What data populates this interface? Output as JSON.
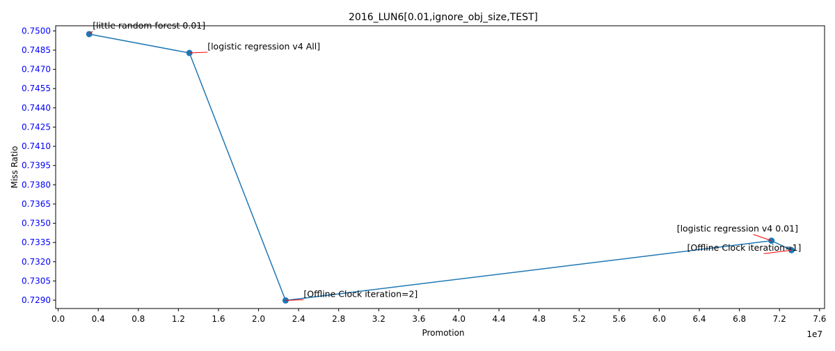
{
  "chart_data": {
    "type": "line",
    "title": "2016_LUN6[0.01,ignore_obj_size,TEST]",
    "xlabel": "Promotion",
    "ylabel": "Miss Ratio",
    "x_offset_label": "1e7",
    "xlim": [
      -250000,
      76500000
    ],
    "ylim": [
      0.72835,
      0.7504
    ],
    "x_tick_values": [
      0,
      4000000,
      8000000,
      12000000,
      16000000,
      20000000,
      24000000,
      28000000,
      32000000,
      36000000,
      40000000,
      44000000,
      48000000,
      52000000,
      56000000,
      60000000,
      64000000,
      68000000,
      72000000,
      76000000
    ],
    "x_tick_labels": [
      "0.0",
      "0.4",
      "0.8",
      "1.2",
      "1.6",
      "2.0",
      "2.4",
      "2.8",
      "3.2",
      "3.6",
      "4.0",
      "4.4",
      "4.8",
      "5.2",
      "5.6",
      "6.0",
      "6.4",
      "6.8",
      "7.2",
      "7.6"
    ],
    "y_tick_values": [
      0.729,
      0.7305,
      0.732,
      0.7335,
      0.735,
      0.7365,
      0.738,
      0.7395,
      0.741,
      0.7425,
      0.744,
      0.7455,
      0.747,
      0.7485,
      0.75
    ],
    "y_tick_labels": [
      "0.7290",
      "0.7305",
      "0.7320",
      "0.7335",
      "0.7350",
      "0.7365",
      "0.7380",
      "0.7395",
      "0.7410",
      "0.7425",
      "0.7440",
      "0.7455",
      "0.7470",
      "0.7485",
      "0.7500"
    ],
    "grid": false,
    "series": [
      {
        "color": "#1f77b4",
        "marker": "circle",
        "points": [
          {
            "x": 3100000,
            "y": 0.74975,
            "label": "[little random forest 0.01]"
          },
          {
            "x": 13100000,
            "y": 0.74828,
            "label": "[logistic regression v4 All]"
          },
          {
            "x": 22700000,
            "y": 0.72898,
            "label": "[Offline Clock iteration=2]"
          },
          {
            "x": 71200000,
            "y": 0.73364,
            "label": "[logistic regression v4 0.01]"
          },
          {
            "x": 73200000,
            "y": 0.7329,
            "label": "[Offline Clock iteration=1]"
          }
        ]
      }
    ],
    "annotation_color": "#000000",
    "arrow_color": "#ff0000",
    "ytick_label_color": "#0000ff"
  }
}
